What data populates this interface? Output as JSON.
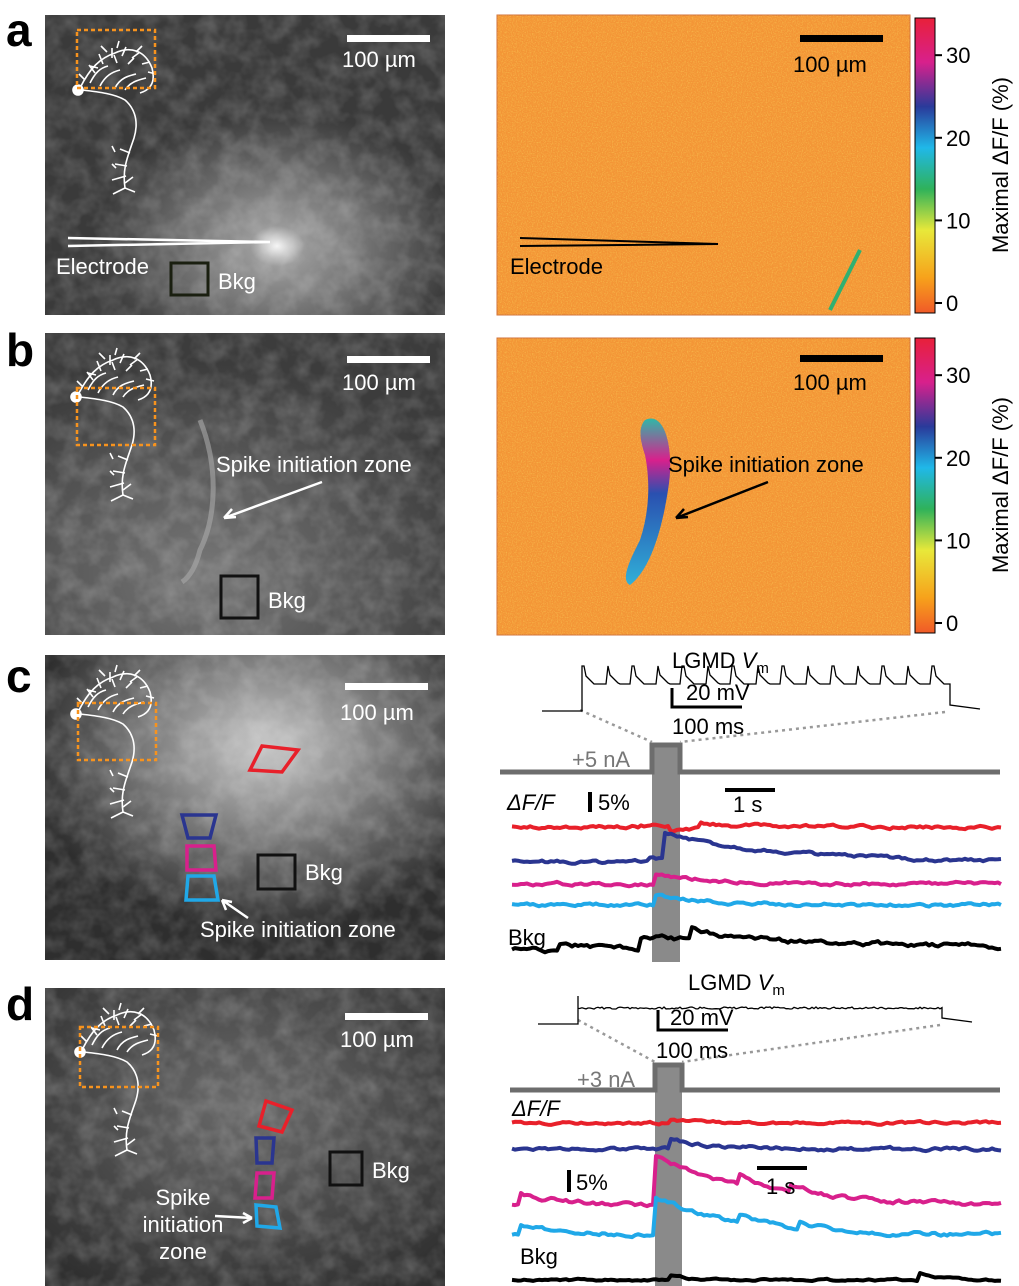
{
  "panels": [
    {
      "label": "a",
      "left": {
        "scale_bar": "100 µm",
        "electrode": "Electrode",
        "bkg": "Bkg"
      },
      "right": {
        "scale_bar": "100 µm",
        "electrode": "Electrode"
      },
      "colorbar": {
        "label": "Maximal ΔF/F (%)",
        "ticks": [
          0,
          10,
          20,
          30
        ]
      }
    },
    {
      "label": "b",
      "left": {
        "scale_bar": "100 µm",
        "spike_zone": "Spike initiation zone",
        "bkg": "Bkg"
      },
      "right": {
        "scale_bar": "100 µm",
        "spike_zone": "Spike initiation zone"
      },
      "colorbar": {
        "label": "Maximal ΔF/F (%)",
        "ticks": [
          0,
          10,
          20,
          30
        ]
      }
    },
    {
      "label": "c",
      "left": {
        "scale_bar": "100 µm",
        "bkg": "Bkg",
        "spike_zone": "Spike initiation zone"
      },
      "right": {
        "vm": {
          "prefix": "LGMD ",
          "var": "V",
          "sub": "m"
        },
        "mv": "20 mV",
        "ms": "100 ms",
        "current": "+5 nA",
        "dff": "ΔF/F",
        "pct": "5%",
        "sec": "1 s",
        "bkg": "Bkg"
      }
    },
    {
      "label": "d",
      "left": {
        "scale_bar": "100 µm",
        "bkg": "Bkg",
        "spike_zone": [
          "Spike",
          "initiation",
          "zone"
        ]
      },
      "right": {
        "vm": {
          "prefix": "LGMD ",
          "var": "V",
          "sub": "m"
        },
        "mv": "20 mV",
        "ms": "100 ms",
        "current": "+3 nA",
        "dff": "ΔF/F",
        "pct": "5%",
        "sec": "1 s",
        "bkg": "Bkg"
      }
    }
  ]
}
